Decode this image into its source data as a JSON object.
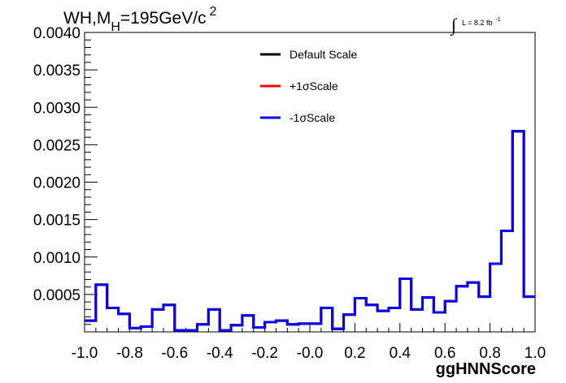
{
  "title": {
    "main": "WH,M",
    "subscript": "H",
    "rest": "=195GeV/c",
    "superscript": "2"
  },
  "luminosity": {
    "integral_symbol": "∫",
    "text": "L = 8.2 fb",
    "superscript": "-1"
  },
  "legend": [
    {
      "label": "Default Scale",
      "color": "#000000"
    },
    {
      "label": "+1σScale",
      "color": "#ff0000"
    },
    {
      "label": "-1σScale",
      "color": "#0000ff"
    }
  ],
  "chart_data": {
    "type": "histogram",
    "xlabel": "ggHNNScore",
    "xlim": [
      -1.0,
      1.0
    ],
    "ylim": [
      0.0,
      0.004
    ],
    "x_ticks": [
      "-1.0",
      "-0.8",
      "-0.6",
      "-0.4",
      "-0.2",
      "-0.0",
      "0.2",
      "0.4",
      "0.6",
      "0.8",
      "1.0"
    ],
    "y_ticks": [
      "0.0005",
      "0.0010",
      "0.0015",
      "0.0020",
      "0.0025",
      "0.0030",
      "0.0035",
      "0.0040"
    ],
    "y_tick_values": [
      0.0005,
      0.001,
      0.0015,
      0.002,
      0.0025,
      0.003,
      0.0035,
      0.004
    ],
    "bin_edges": [
      -1.0,
      -0.95,
      -0.9,
      -0.85,
      -0.8,
      -0.75,
      -0.7,
      -0.65,
      -0.6,
      -0.55,
      -0.5,
      -0.45,
      -0.4,
      -0.35,
      -0.3,
      -0.25,
      -0.2,
      -0.15,
      -0.1,
      -0.05,
      0.0,
      0.05,
      0.1,
      0.15,
      0.2,
      0.25,
      0.3,
      0.35,
      0.4,
      0.45,
      0.5,
      0.55,
      0.6,
      0.65,
      0.7,
      0.75,
      0.8,
      0.85,
      0.9,
      0.95,
      1.0
    ],
    "series": [
      {
        "name": "Default Scale",
        "color": "#000000",
        "values": [
          0.00015,
          0.00063,
          0.00032,
          0.00024,
          5e-05,
          7e-05,
          0.0003,
          0.00036,
          2e-05,
          2e-05,
          0.0001,
          0.0003,
          2e-05,
          9e-05,
          0.00022,
          6e-05,
          0.00013,
          0.00015,
          0.0001,
          0.00011,
          0.00011,
          0.00032,
          4e-05,
          0.00023,
          0.00045,
          0.00036,
          0.00028,
          0.00032,
          0.00071,
          0.0003,
          0.00046,
          0.00026,
          0.00041,
          0.00061,
          0.00066,
          0.00047,
          0.00091,
          0.00135,
          0.00268,
          0.00047
        ]
      },
      {
        "name": "+1σScale",
        "color": "#ff0000",
        "values": [
          0.00015,
          0.00063,
          0.00032,
          0.00024,
          5e-05,
          7e-05,
          0.0003,
          0.00036,
          2e-05,
          2e-05,
          0.0001,
          0.0003,
          2e-05,
          9e-05,
          0.00022,
          6e-05,
          0.00013,
          0.00015,
          0.0001,
          0.00011,
          0.00011,
          0.00032,
          4e-05,
          0.00023,
          0.00045,
          0.00036,
          0.00028,
          0.00032,
          0.00071,
          0.0003,
          0.00046,
          0.00026,
          0.00041,
          0.00061,
          0.00066,
          0.00047,
          0.00091,
          0.00135,
          0.00268,
          0.00047
        ]
      },
      {
        "name": "-1σScale",
        "color": "#0000ff",
        "values": [
          0.00015,
          0.00063,
          0.00032,
          0.00024,
          5e-05,
          7e-05,
          0.0003,
          0.00036,
          2e-05,
          2e-05,
          0.0001,
          0.0003,
          2e-05,
          9e-05,
          0.00022,
          6e-05,
          0.00013,
          0.00015,
          0.0001,
          0.00011,
          0.00011,
          0.00032,
          4e-05,
          0.00023,
          0.00045,
          0.00036,
          0.00028,
          0.00032,
          0.00071,
          0.0003,
          0.00046,
          0.00026,
          0.00041,
          0.00061,
          0.00066,
          0.00047,
          0.00091,
          0.00135,
          0.00268,
          0.00047
        ]
      }
    ],
    "grid": false,
    "legend_position": "top-right"
  }
}
